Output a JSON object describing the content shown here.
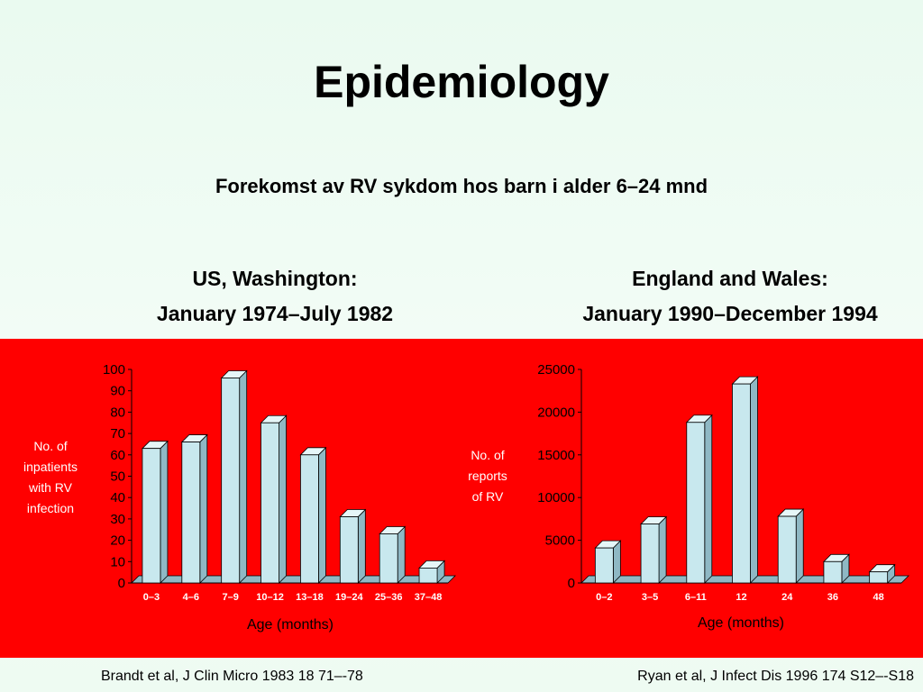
{
  "slide": {
    "title": "Epidemiology",
    "subtitle": "Forekomst av RV sykdom hos barn i alder 6–24 mnd",
    "left_heading": [
      "US, Washington:",
      "January 1974–July 1982"
    ],
    "right_heading": [
      "England and Wales:",
      "January 1990–December 1994"
    ],
    "left_ylabel": [
      "No. of",
      "inpatients",
      "with RV",
      "infection"
    ],
    "right_ylabel": [
      "No. of",
      "reports",
      "of RV"
    ],
    "left_citation": "Brandt et al, J Clin Micro 1983 18 71–-78",
    "right_citation": "Ryan et al, J Infect Dis 1996 174 S12–-S18"
  },
  "colors": {
    "panel": "#ff0000",
    "bar_front": "#c8e8ee",
    "bar_side": "#8fb8c4",
    "bar_top": "#e6f6f8",
    "axis": "#000000"
  },
  "chart_data": [
    {
      "type": "bar",
      "categories": [
        "0–3",
        "4–6",
        "7–9",
        "10–12",
        "13–18",
        "19–24",
        "25–36",
        "37–48"
      ],
      "values": [
        63,
        66,
        96,
        75,
        60,
        31,
        23,
        7
      ],
      "xlabel": "Age (months)",
      "ylim": [
        0,
        100
      ],
      "yticks": [
        0,
        10,
        20,
        30,
        40,
        50,
        60,
        70,
        80,
        90,
        100
      ],
      "grid": false
    },
    {
      "type": "bar",
      "categories": [
        "0–2",
        "3–5",
        "6–11",
        "12",
        "24",
        "36",
        "48"
      ],
      "values": [
        4100,
        6900,
        18800,
        23300,
        7800,
        2500,
        1300
      ],
      "xlabel": "Age (months)",
      "ylim": [
        0,
        25000
      ],
      "yticks": [
        0,
        5000,
        10000,
        15000,
        20000,
        25000
      ],
      "grid": false
    }
  ]
}
